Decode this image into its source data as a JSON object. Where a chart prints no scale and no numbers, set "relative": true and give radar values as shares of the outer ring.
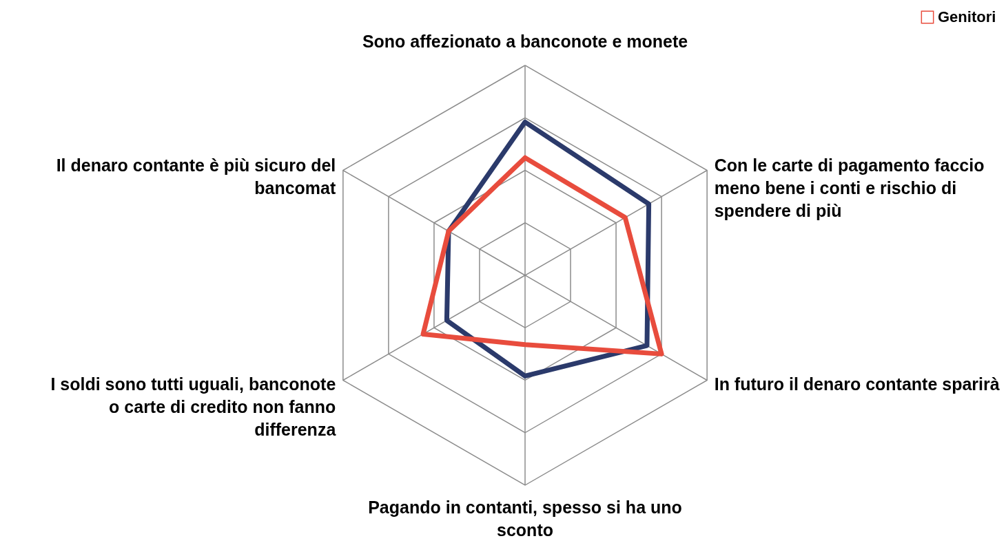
{
  "chart_data": {
    "type": "radar",
    "relative": true,
    "grid": true,
    "legend": "top right",
    "categories": [
      "Sono affezionato a banconote e monete",
      "Con le carte di pagamento faccio meno bene i conti e rischio di spendere di più",
      "In futuro il denaro contante sparirà",
      "Pagando in contanti, spesso si ha uno sconto",
      "I soldi sono tutti uguali, banconote o carte di credito non fanno differenza",
      "Il denaro contante è più sicuro del bancomat"
    ],
    "series": [
      {
        "name": "Genitori",
        "color": "#e84c3d",
        "values": [
          0.56,
          0.55,
          0.75,
          0.33,
          0.56,
          0.42
        ]
      },
      {
        "color": "#2b3a6b",
        "values": [
          0.73,
          0.68,
          0.67,
          0.48,
          0.43,
          0.42
        ]
      }
    ]
  }
}
